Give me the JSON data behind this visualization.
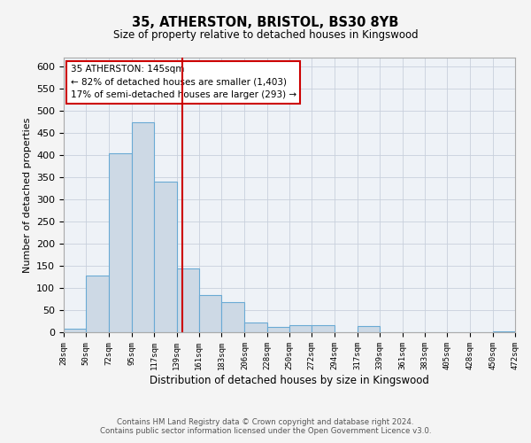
{
  "title": "35, ATHERSTON, BRISTOL, BS30 8YB",
  "subtitle": "Size of property relative to detached houses in Kingswood",
  "xlabel": "Distribution of detached houses by size in Kingswood",
  "ylabel": "Number of detached properties",
  "bar_color": "#cdd9e5",
  "bar_edge_color": "#6aaad4",
  "background_color": "#eef2f7",
  "grid_color": "#c8d0dc",
  "vline_x": 145,
  "vline_color": "#cc0000",
  "annotation_title": "35 ATHERSTON: 145sqm",
  "annotation_line1": "← 82% of detached houses are smaller (1,403)",
  "annotation_line2": "17% of semi-detached houses are larger (293) →",
  "annotation_box_color": "#ffffff",
  "annotation_box_edge": "#cc0000",
  "bin_edges": [
    28,
    50,
    72,
    95,
    117,
    139,
    161,
    183,
    206,
    228,
    250,
    272,
    294,
    317,
    339,
    361,
    383,
    405,
    428,
    450,
    472
  ],
  "bar_heights": [
    8,
    128,
    405,
    475,
    340,
    145,
    85,
    68,
    22,
    12,
    16,
    16,
    1,
    14,
    1,
    1,
    0,
    0,
    0,
    3
  ],
  "ylim": [
    0,
    620
  ],
  "yticks": [
    0,
    50,
    100,
    150,
    200,
    250,
    300,
    350,
    400,
    450,
    500,
    550,
    600
  ],
  "footer1": "Contains HM Land Registry data © Crown copyright and database right 2024.",
  "footer2": "Contains public sector information licensed under the Open Government Licence v3.0."
}
